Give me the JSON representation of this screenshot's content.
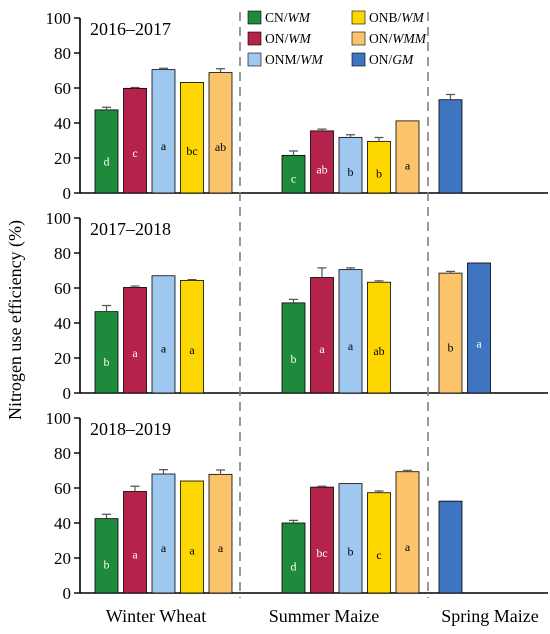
{
  "chart_data": {
    "type": "bar",
    "ylabel": "Nitrogen use efficiency (%)",
    "ylim": [
      0,
      100
    ],
    "yticks": [
      0,
      20,
      40,
      60,
      80,
      100
    ],
    "categories": [
      "Winter Wheat",
      "Summer Maize",
      "Spring Maize"
    ],
    "legend": [
      {
        "prefix": "CN/",
        "suffix": "WM",
        "color": "#1e8a3c"
      },
      {
        "prefix": "ONB/",
        "suffix": "WM",
        "color": "#ffd700"
      },
      {
        "prefix": "ON/",
        "suffix": "WM",
        "color": "#b5234a"
      },
      {
        "prefix": "ON/",
        "suffix": "WMM",
        "color": "#fcc46a"
      },
      {
        "prefix": "ONM/",
        "suffix": "WM",
        "color": "#9ec8ef"
      },
      {
        "prefix": "ON/",
        "suffix": "GM",
        "color": "#3f74c0"
      }
    ],
    "panels": [
      {
        "title": "2016–2017",
        "groups": [
          {
            "category": "Winter Wheat",
            "bars": [
              {
                "treatment": "CN/WM",
                "color": "#1e8a3c",
                "value": 47.5,
                "err": 1.5,
                "sig": "d",
                "sig_color": "#ffffff"
              },
              {
                "treatment": "ON/WM",
                "color": "#b5234a",
                "value": 59.8,
                "err": 0.5,
                "sig": "c",
                "sig_color": "#ffffff"
              },
              {
                "treatment": "ONM/WM",
                "color": "#9ec8ef",
                "value": 70.5,
                "err": 0.8,
                "sig": "a",
                "sig_color": "#000000"
              },
              {
                "treatment": "ONB/WM",
                "color": "#ffd700",
                "value": 63.2,
                "err": 0,
                "sig": "bc",
                "sig_color": "#000000"
              },
              {
                "treatment": "ON/WMM",
                "color": "#fcc46a",
                "value": 68.8,
                "err": 2.2,
                "sig": "ab",
                "sig_color": "#000000"
              }
            ]
          },
          {
            "category": "Summer Maize",
            "bars": [
              {
                "treatment": "CN/WM",
                "color": "#1e8a3c",
                "value": 21.5,
                "err": 2.5,
                "sig": "c",
                "sig_color": "#ffffff"
              },
              {
                "treatment": "ON/WM",
                "color": "#b5234a",
                "value": 35.5,
                "err": 1.0,
                "sig": "ab",
                "sig_color": "#ffffff"
              },
              {
                "treatment": "ONM/WM",
                "color": "#9ec8ef",
                "value": 31.8,
                "err": 1.5,
                "sig": "b",
                "sig_color": "#000000"
              },
              {
                "treatment": "ONB/WM",
                "color": "#ffd700",
                "value": 29.5,
                "err": 2.2,
                "sig": "b",
                "sig_color": "#000000"
              },
              {
                "treatment": "ON/WMM",
                "color": "#fcc46a",
                "value": 41.2,
                "err": 0,
                "sig": "a",
                "sig_color": "#000000"
              }
            ]
          },
          {
            "category": "Spring Maize",
            "bars": [
              {
                "treatment": "ON/GM",
                "color": "#3f74c0",
                "value": 53.3,
                "err": 3.0,
                "sig": "",
                "sig_color": "#ffffff"
              }
            ]
          }
        ]
      },
      {
        "title": "2017–2018",
        "groups": [
          {
            "category": "Winter Wheat",
            "bars": [
              {
                "treatment": "CN/WM",
                "color": "#1e8a3c",
                "value": 46.5,
                "err": 3.5,
                "sig": "b",
                "sig_color": "#ffffff"
              },
              {
                "treatment": "ON/WM",
                "color": "#b5234a",
                "value": 60.3,
                "err": 0.8,
                "sig": "a",
                "sig_color": "#ffffff"
              },
              {
                "treatment": "ONM/WM",
                "color": "#9ec8ef",
                "value": 67.0,
                "err": 0,
                "sig": "a",
                "sig_color": "#000000"
              },
              {
                "treatment": "ONB/WM",
                "color": "#ffd700",
                "value": 64.3,
                "err": 0.5,
                "sig": "a",
                "sig_color": "#000000"
              }
            ]
          },
          {
            "category": "Summer Maize",
            "bars": [
              {
                "treatment": "CN/WM",
                "color": "#1e8a3c",
                "value": 51.5,
                "err": 2.0,
                "sig": "b",
                "sig_color": "#ffffff"
              },
              {
                "treatment": "ON/WM",
                "color": "#b5234a",
                "value": 66.0,
                "err": 5.5,
                "sig": "a",
                "sig_color": "#ffffff"
              },
              {
                "treatment": "ONM/WM",
                "color": "#9ec8ef",
                "value": 70.5,
                "err": 1.0,
                "sig": "a",
                "sig_color": "#000000"
              },
              {
                "treatment": "ONB/WM",
                "color": "#ffd700",
                "value": 63.3,
                "err": 0.8,
                "sig": "ab",
                "sig_color": "#000000"
              }
            ]
          },
          {
            "category": "Spring Maize",
            "bars": [
              {
                "treatment": "ON/WMM",
                "color": "#fcc46a",
                "value": 68.5,
                "err": 1.0,
                "sig": "b",
                "sig_color": "#000000"
              },
              {
                "treatment": "ON/GM",
                "color": "#3f74c0",
                "value": 74.3,
                "err": 0,
                "sig": "a",
                "sig_color": "#ffffff"
              }
            ]
          }
        ]
      },
      {
        "title": "2018–2019",
        "groups": [
          {
            "category": "Winter Wheat",
            "bars": [
              {
                "treatment": "CN/WM",
                "color": "#1e8a3c",
                "value": 42.5,
                "err": 2.5,
                "sig": "b",
                "sig_color": "#ffffff"
              },
              {
                "treatment": "ON/WM",
                "color": "#b5234a",
                "value": 58.0,
                "err": 3.0,
                "sig": "a",
                "sig_color": "#ffffff"
              },
              {
                "treatment": "ONM/WM",
                "color": "#9ec8ef",
                "value": 68.0,
                "err": 2.5,
                "sig": "a",
                "sig_color": "#000000"
              },
              {
                "treatment": "ONB/WM",
                "color": "#ffd700",
                "value": 64.0,
                "err": 0,
                "sig": "a",
                "sig_color": "#000000"
              },
              {
                "treatment": "ON/WMM",
                "color": "#fcc46a",
                "value": 67.8,
                "err": 2.5,
                "sig": "a",
                "sig_color": "#000000"
              }
            ]
          },
          {
            "category": "Summer Maize",
            "bars": [
              {
                "treatment": "CN/WM",
                "color": "#1e8a3c",
                "value": 40.0,
                "err": 1.5,
                "sig": "d",
                "sig_color": "#ffffff"
              },
              {
                "treatment": "ON/WM",
                "color": "#b5234a",
                "value": 60.5,
                "err": 0.5,
                "sig": "bc",
                "sig_color": "#ffffff"
              },
              {
                "treatment": "ONM/WM",
                "color": "#9ec8ef",
                "value": 62.5,
                "err": 0,
                "sig": "b",
                "sig_color": "#000000"
              },
              {
                "treatment": "ONB/WM",
                "color": "#ffd700",
                "value": 57.3,
                "err": 1.0,
                "sig": "c",
                "sig_color": "#000000"
              },
              {
                "treatment": "ON/WMM",
                "color": "#fcc46a",
                "value": 69.3,
                "err": 0.8,
                "sig": "a",
                "sig_color": "#000000"
              }
            ]
          },
          {
            "category": "Spring Maize",
            "bars": [
              {
                "treatment": "ON/GM",
                "color": "#3f74c0",
                "value": 52.5,
                "err": 0,
                "sig": "",
                "sig_color": "#ffffff"
              }
            ]
          }
        ]
      }
    ]
  }
}
